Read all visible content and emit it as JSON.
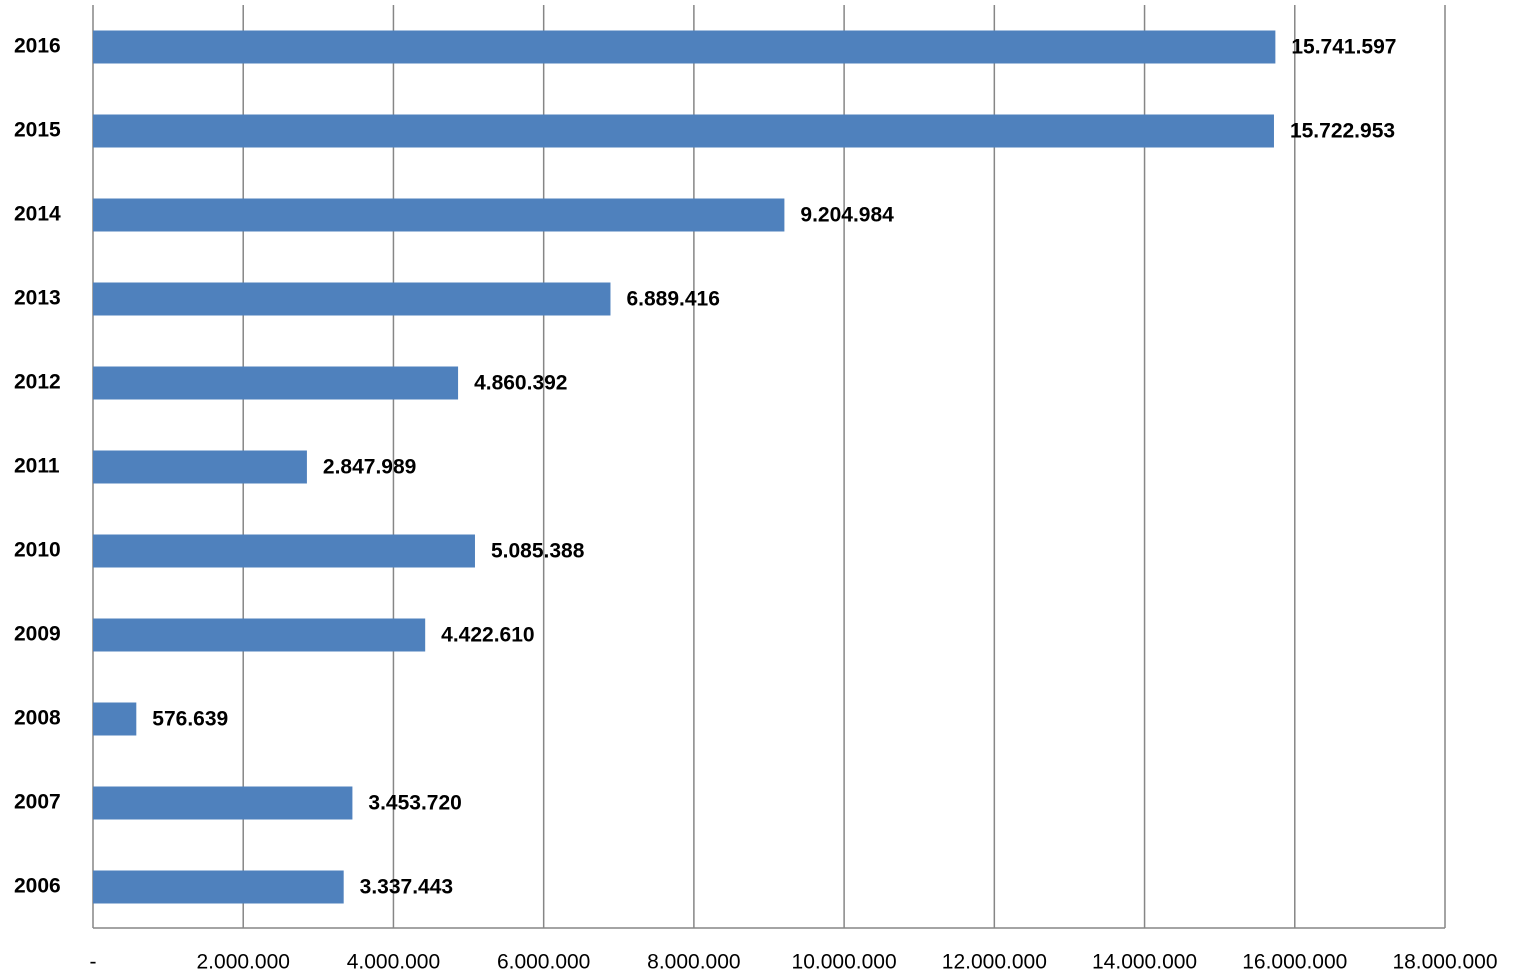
{
  "chart_data": {
    "type": "bar",
    "orientation": "horizontal",
    "color": "#4f81bd",
    "grid": true,
    "categories": [
      "2016",
      "2015",
      "2014",
      "2013",
      "2012",
      "2011",
      "2010",
      "2009",
      "2008",
      "2007",
      "2006"
    ],
    "values": [
      15741597,
      15722953,
      9204984,
      6889416,
      4860392,
      2847989,
      5085388,
      4422610,
      576639,
      3453720,
      3337443
    ],
    "value_labels": [
      "15.741.597",
      "15.722.953",
      "9.204.984",
      "6.889.416",
      "4.860.392",
      "2.847.989",
      "5.085.388",
      "4.422.610",
      "576.639",
      "3.453.720",
      "3.337.443"
    ],
    "xlim": [
      0,
      18000000
    ],
    "xticks": [
      {
        "value": 0,
        "label": "-"
      },
      {
        "value": 2000000,
        "label": "2.000.000"
      },
      {
        "value": 4000000,
        "label": "4.000.000"
      },
      {
        "value": 6000000,
        "label": "6.000.000"
      },
      {
        "value": 8000000,
        "label": "8.000.000"
      },
      {
        "value": 10000000,
        "label": "10.000.000"
      },
      {
        "value": 12000000,
        "label": "12.000.000"
      },
      {
        "value": 14000000,
        "label": "14.000.000"
      },
      {
        "value": 16000000,
        "label": "16.000.000"
      },
      {
        "value": 18000000,
        "label": "18.000.000"
      }
    ]
  }
}
